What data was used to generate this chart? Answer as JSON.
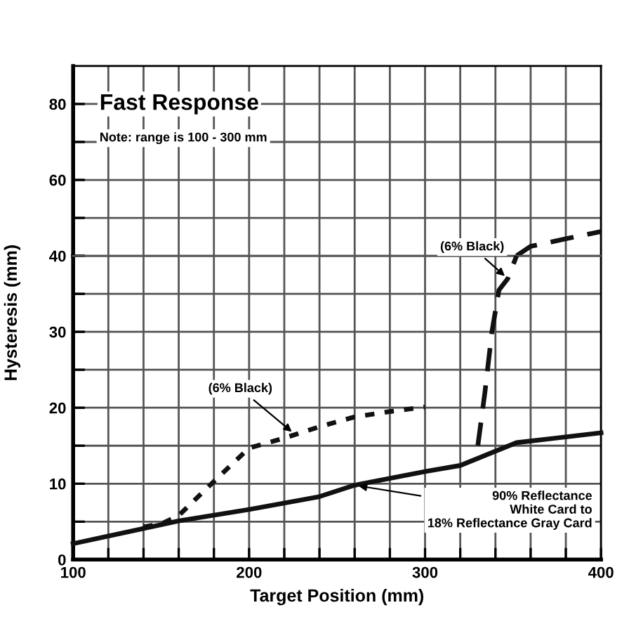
{
  "chart_data": [
    {
      "type": "line",
      "title": "Fast Response",
      "xlim": [
        100,
        400
      ],
      "xticks": [
        100,
        200,
        300,
        400
      ],
      "ylim": [
        40,
        90
      ],
      "yticks": [
        {
          "value": 40,
          "label": null
        },
        60,
        80
      ],
      "grid": true,
      "tick_labels": "y",
      "series": [
        {
          "color": "#111111",
          "line_style": "dashed",
          "x": [
            352,
            360,
            380,
            400
          ],
          "values": [
            40,
            42.5,
            44.5,
            46.4
          ]
        }
      ],
      "annotations": [
        "Note: range is 100 - 300 mm"
      ]
    },
    {
      "type": "line",
      "xlabel": "Target Position (mm)",
      "ylabel": "Hysteresis (mm)",
      "xlim": [
        100,
        400
      ],
      "xticks": [
        100,
        200,
        300,
        400
      ],
      "ylim": [
        0,
        40
      ],
      "yticks": [
        0,
        10,
        20,
        30,
        40
      ],
      "grid": true,
      "series": [
        {
          "color": "#111111",
          "line_style": "solid",
          "x": [
            100,
            160,
            200,
            240,
            260,
            300,
            320,
            352,
            374,
            400
          ],
          "values": [
            2.1,
            5.1,
            6.6,
            8.3,
            9.8,
            11.6,
            12.4,
            15.4,
            16.0,
            16.7
          ]
        },
        {
          "color": "#111111",
          "line_style": "dotted",
          "x": [
            140,
            150,
            160,
            180,
            200,
            220,
            240,
            260,
            280,
            300
          ],
          "values": [
            4.3,
            4.7,
            5.8,
            10.3,
            14.7,
            16.0,
            17.5,
            18.8,
            19.5,
            20.1
          ]
        },
        {
          "color": "#111111",
          "line_style": "dashed",
          "x": [
            330,
            334,
            338,
            342,
            347,
            352
          ],
          "values": [
            15,
            22,
            30,
            35.5,
            37,
            40
          ]
        }
      ],
      "annotations": [
        {
          "text": "(6% Black)",
          "x": 226,
          "y": 16.5
        },
        {
          "text": "(6% Black)",
          "x": 347,
          "y": 37
        },
        {
          "text": "90% Reflectance\nWhite Card to\n18% Reflectance Gray Card",
          "x": 260,
          "y": 9.8
        }
      ]
    }
  ]
}
